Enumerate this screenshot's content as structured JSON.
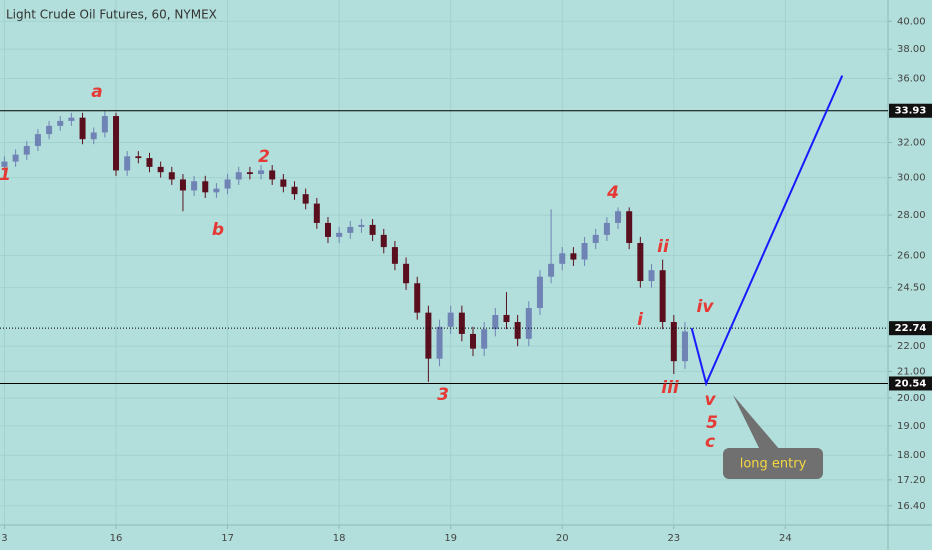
{
  "chart_data": {
    "type": "candlestick",
    "title": "Light Crude Oil Futures, 60, NYMEX",
    "log_scale": true,
    "grid": true,
    "background": "#b2dfdb",
    "up_color": "#7083b5",
    "down_color": "#5a0f1e",
    "xlim": [
      -0.04,
      7.92
    ],
    "ylim": [
      15.83,
      41.6
    ],
    "xticks": [
      {
        "value": 0,
        "label": "3"
      },
      {
        "value": 1,
        "label": "16"
      },
      {
        "value": 2,
        "label": "17"
      },
      {
        "value": 3,
        "label": "18"
      },
      {
        "value": 4,
        "label": "19"
      },
      {
        "value": 5,
        "label": "20"
      },
      {
        "value": 6,
        "label": "23"
      },
      {
        "value": 7,
        "label": "24"
      }
    ],
    "yticks": [
      {
        "value": 40,
        "label": "40.00"
      },
      {
        "value": 38,
        "label": "38.00"
      },
      {
        "value": 36,
        "label": "36.00"
      },
      {
        "value": 32,
        "label": "32.00"
      },
      {
        "value": 30,
        "label": "30.00"
      },
      {
        "value": 28,
        "label": "28.00"
      },
      {
        "value": 26,
        "label": "26.00"
      },
      {
        "value": 24.5,
        "label": "24.50"
      },
      {
        "value": 22,
        "label": "22.00"
      },
      {
        "value": 21,
        "label": "21.00"
      },
      {
        "value": 20,
        "label": "20.00"
      },
      {
        "value": 19,
        "label": "19.00"
      },
      {
        "value": 18,
        "label": "18.00"
      },
      {
        "value": 17.2,
        "label": "17.20"
      },
      {
        "value": 16.4,
        "label": "16.40"
      }
    ],
    "x": [
      0,
      0.1,
      0.2,
      0.3,
      0.4,
      0.5,
      0.6,
      0.7,
      0.8,
      0.9,
      1.0,
      1.1,
      1.2,
      1.3,
      1.4,
      1.5,
      1.6,
      1.7,
      1.8,
      1.9,
      2.0,
      2.1,
      2.2,
      2.3,
      2.4,
      2.5,
      2.6,
      2.7,
      2.8,
      2.9,
      3.0,
      3.1,
      3.2,
      3.3,
      3.4,
      3.5,
      3.6,
      3.7,
      3.8,
      3.9,
      4.0,
      4.1,
      4.2,
      4.3,
      4.4,
      4.5,
      4.6,
      4.7,
      4.8,
      4.9,
      5.0,
      5.1,
      5.2,
      5.3,
      5.4,
      5.5,
      5.6,
      5.7,
      5.8,
      5.9,
      6.0,
      6.1
    ],
    "open": [
      30.6,
      30.9,
      31.3,
      31.8,
      32.5,
      33.0,
      33.3,
      33.5,
      32.2,
      32.6,
      33.6,
      30.4,
      31.2,
      31.1,
      30.6,
      30.3,
      29.9,
      29.3,
      29.8,
      29.2,
      29.4,
      29.9,
      30.3,
      30.2,
      30.4,
      29.9,
      29.5,
      29.1,
      28.6,
      27.6,
      26.9,
      27.1,
      27.4,
      27.5,
      27.0,
      26.4,
      25.6,
      24.7,
      23.4,
      21.5,
      22.8,
      23.4,
      22.5,
      21.9,
      22.7,
      23.3,
      23.0,
      22.3,
      23.6,
      25.0,
      25.6,
      26.1,
      25.8,
      26.6,
      27.0,
      27.6,
      28.2,
      26.6,
      24.8,
      25.3,
      23.0,
      21.4
    ],
    "high": [
      31.2,
      31.6,
      32.1,
      32.8,
      33.3,
      33.6,
      33.8,
      33.8,
      32.9,
      33.93,
      33.8,
      31.5,
      31.5,
      31.4,
      30.9,
      30.6,
      30.2,
      30.1,
      30.1,
      29.7,
      30.2,
      30.6,
      30.6,
      30.7,
      30.7,
      30.2,
      29.8,
      29.4,
      28.9,
      27.9,
      27.4,
      27.7,
      27.8,
      27.8,
      27.3,
      26.7,
      25.9,
      25.0,
      23.7,
      23.1,
      23.7,
      23.7,
      22.8,
      23.0,
      23.6,
      24.3,
      23.3,
      23.9,
      25.3,
      28.3,
      26.4,
      26.4,
      26.9,
      27.3,
      27.9,
      28.4,
      28.4,
      26.9,
      25.6,
      25.8,
      23.3,
      23.0
    ],
    "low": [
      30.3,
      30.6,
      31.0,
      31.5,
      32.2,
      32.7,
      33.0,
      31.9,
      31.9,
      32.3,
      30.1,
      30.1,
      30.8,
      30.3,
      30.0,
      29.6,
      28.2,
      29.0,
      28.9,
      28.9,
      29.1,
      29.6,
      29.9,
      29.9,
      29.6,
      29.2,
      28.8,
      28.3,
      27.3,
      26.6,
      26.6,
      26.8,
      27.1,
      26.7,
      26.1,
      25.3,
      24.4,
      23.1,
      20.6,
      21.2,
      22.5,
      22.2,
      21.6,
      21.6,
      22.4,
      22.7,
      22.0,
      22.0,
      23.3,
      24.7,
      25.3,
      25.5,
      25.5,
      26.3,
      26.7,
      27.3,
      26.3,
      24.5,
      24.5,
      22.7,
      20.9,
      21.1
    ],
    "close": [
      30.9,
      31.3,
      31.8,
      32.5,
      33.0,
      33.3,
      33.5,
      32.2,
      32.6,
      33.6,
      30.4,
      31.2,
      31.1,
      30.6,
      30.3,
      29.9,
      29.3,
      29.8,
      29.2,
      29.4,
      29.9,
      30.3,
      30.2,
      30.4,
      29.9,
      29.5,
      29.1,
      28.6,
      27.6,
      26.9,
      27.1,
      27.4,
      27.5,
      27.0,
      26.4,
      25.6,
      24.7,
      23.4,
      21.5,
      22.8,
      23.4,
      22.5,
      21.9,
      22.7,
      23.3,
      23.0,
      22.3,
      23.6,
      25.0,
      25.6,
      26.1,
      25.8,
      26.6,
      27.0,
      27.6,
      28.2,
      26.6,
      24.8,
      25.3,
      23.0,
      21.4,
      22.6
    ],
    "hlines": [
      {
        "value": 33.93,
        "style": "solid"
      },
      {
        "value": 22.74,
        "style": "dotted"
      },
      {
        "value": 20.54,
        "style": "solid"
      }
    ],
    "projection": {
      "color": "#1a1aff",
      "x": [
        6.16,
        6.29,
        7.51
      ],
      "values": [
        22.74,
        20.54,
        36.2
      ]
    },
    "annotations": [
      "1",
      "a",
      "b",
      "2",
      "3",
      "4",
      "i",
      "ii",
      "iii",
      "iv",
      "v",
      "5",
      "c"
    ],
    "annotation_color": "#e53935",
    "callout": "long entry"
  }
}
